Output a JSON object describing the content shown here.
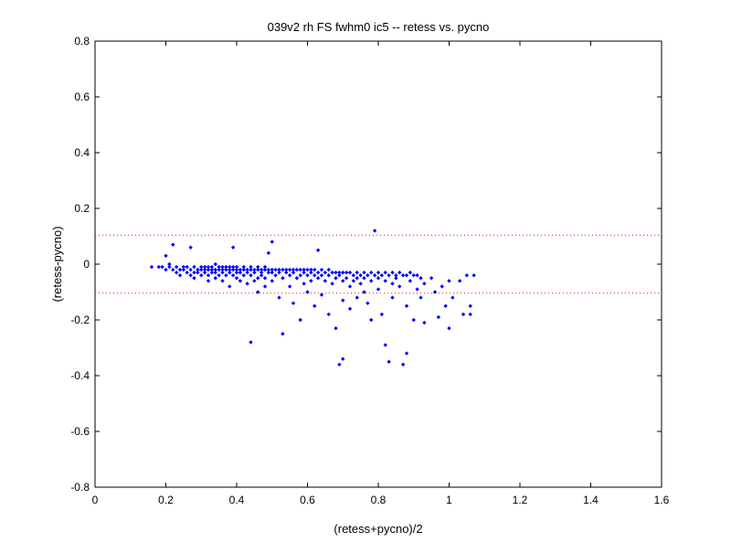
{
  "chart_data": {
    "type": "scatter",
    "title": "039v2 rh FS fwhm0 ic5 -- retess vs. pycno",
    "xlabel": "(retess+pycno)/2",
    "ylabel": "(retess-pycno)",
    "xlim": [
      0,
      1.6
    ],
    "ylim": [
      -0.8,
      0.8
    ],
    "xticks": [
      "0",
      "0.2",
      "0.4",
      "0.6",
      "0.8",
      "1",
      "1.2",
      "1.4",
      "1.6"
    ],
    "yticks": [
      "-0.8",
      "-0.6",
      "-0.4",
      "-0.2",
      "0",
      "0.2",
      "0.4",
      "0.6",
      "0.8"
    ],
    "grid": false,
    "point_color": "#0000ff",
    "reference_line_color": "#ff0000",
    "reference_lines_y": [
      0.104,
      -0.104
    ],
    "series": [
      {
        "points": [
          [
            0.16,
            -0.01
          ],
          [
            0.18,
            -0.01
          ],
          [
            0.19,
            -0.01
          ],
          [
            0.2,
            -0.02
          ],
          [
            0.2,
            0.03
          ],
          [
            0.21,
            -0.01
          ],
          [
            0.21,
            0.0
          ],
          [
            0.22,
            -0.02
          ],
          [
            0.22,
            0.07
          ],
          [
            0.23,
            -0.01
          ],
          [
            0.23,
            -0.03
          ],
          [
            0.24,
            -0.02
          ],
          [
            0.24,
            -0.04
          ],
          [
            0.25,
            -0.01
          ],
          [
            0.25,
            -0.02
          ],
          [
            0.26,
            -0.01
          ],
          [
            0.26,
            -0.03
          ],
          [
            0.27,
            -0.02
          ],
          [
            0.27,
            -0.04
          ],
          [
            0.27,
            0.06
          ],
          [
            0.28,
            -0.01
          ],
          [
            0.28,
            -0.03
          ],
          [
            0.28,
            -0.05
          ],
          [
            0.29,
            -0.02
          ],
          [
            0.29,
            -0.03
          ],
          [
            0.3,
            -0.01
          ],
          [
            0.3,
            -0.02
          ],
          [
            0.3,
            -0.04
          ],
          [
            0.31,
            -0.01
          ],
          [
            0.31,
            -0.02
          ],
          [
            0.31,
            -0.03
          ],
          [
            0.32,
            -0.01
          ],
          [
            0.32,
            -0.02
          ],
          [
            0.32,
            -0.04
          ],
          [
            0.32,
            -0.06
          ],
          [
            0.33,
            -0.01
          ],
          [
            0.33,
            -0.02
          ],
          [
            0.33,
            -0.03
          ],
          [
            0.34,
            0.0
          ],
          [
            0.34,
            -0.02
          ],
          [
            0.34,
            -0.03
          ],
          [
            0.34,
            -0.05
          ],
          [
            0.35,
            -0.01
          ],
          [
            0.35,
            -0.02
          ],
          [
            0.35,
            -0.04
          ],
          [
            0.36,
            -0.01
          ],
          [
            0.36,
            -0.02
          ],
          [
            0.36,
            -0.03
          ],
          [
            0.36,
            -0.06
          ],
          [
            0.37,
            -0.01
          ],
          [
            0.37,
            -0.02
          ],
          [
            0.37,
            -0.04
          ],
          [
            0.38,
            -0.01
          ],
          [
            0.38,
            -0.02
          ],
          [
            0.38,
            -0.03
          ],
          [
            0.38,
            -0.08
          ],
          [
            0.39,
            -0.01
          ],
          [
            0.39,
            -0.02
          ],
          [
            0.39,
            -0.04
          ],
          [
            0.39,
            0.06
          ],
          [
            0.4,
            -0.01
          ],
          [
            0.4,
            -0.02
          ],
          [
            0.4,
            -0.03
          ],
          [
            0.4,
            -0.05
          ],
          [
            0.41,
            -0.02
          ],
          [
            0.41,
            -0.03
          ],
          [
            0.41,
            -0.06
          ],
          [
            0.42,
            -0.01
          ],
          [
            0.42,
            -0.02
          ],
          [
            0.42,
            -0.04
          ],
          [
            0.43,
            -0.02
          ],
          [
            0.43,
            -0.03
          ],
          [
            0.43,
            -0.07
          ],
          [
            0.44,
            -0.01
          ],
          [
            0.44,
            -0.02
          ],
          [
            0.44,
            -0.04
          ],
          [
            0.44,
            -0.28
          ],
          [
            0.45,
            -0.02
          ],
          [
            0.45,
            -0.03
          ],
          [
            0.45,
            -0.06
          ],
          [
            0.46,
            -0.01
          ],
          [
            0.46,
            -0.02
          ],
          [
            0.46,
            -0.05
          ],
          [
            0.46,
            -0.1
          ],
          [
            0.47,
            -0.02
          ],
          [
            0.47,
            -0.03
          ],
          [
            0.47,
            -0.04
          ],
          [
            0.48,
            -0.01
          ],
          [
            0.48,
            -0.02
          ],
          [
            0.48,
            -0.05
          ],
          [
            0.48,
            -0.08
          ],
          [
            0.49,
            -0.02
          ],
          [
            0.49,
            -0.03
          ],
          [
            0.49,
            0.04
          ],
          [
            0.5,
            -0.02
          ],
          [
            0.5,
            -0.03
          ],
          [
            0.5,
            -0.06
          ],
          [
            0.5,
            0.08
          ],
          [
            0.51,
            -0.02
          ],
          [
            0.51,
            -0.04
          ],
          [
            0.52,
            -0.02
          ],
          [
            0.52,
            -0.03
          ],
          [
            0.52,
            -0.12
          ],
          [
            0.53,
            -0.02
          ],
          [
            0.53,
            -0.05
          ],
          [
            0.53,
            -0.25
          ],
          [
            0.54,
            -0.02
          ],
          [
            0.54,
            -0.03
          ],
          [
            0.55,
            -0.02
          ],
          [
            0.55,
            -0.04
          ],
          [
            0.55,
            -0.08
          ],
          [
            0.56,
            -0.02
          ],
          [
            0.56,
            -0.03
          ],
          [
            0.56,
            -0.14
          ],
          [
            0.57,
            -0.02
          ],
          [
            0.57,
            -0.05
          ],
          [
            0.58,
            -0.02
          ],
          [
            0.58,
            -0.04
          ],
          [
            0.58,
            -0.2
          ],
          [
            0.59,
            -0.02
          ],
          [
            0.59,
            -0.03
          ],
          [
            0.59,
            -0.07
          ],
          [
            0.6,
            -0.02
          ],
          [
            0.6,
            -0.04
          ],
          [
            0.6,
            -0.1
          ],
          [
            0.61,
            -0.02
          ],
          [
            0.61,
            -0.03
          ],
          [
            0.61,
            -0.06
          ],
          [
            0.62,
            -0.02
          ],
          [
            0.62,
            -0.04
          ],
          [
            0.62,
            -0.15
          ],
          [
            0.63,
            -0.03
          ],
          [
            0.63,
            -0.05
          ],
          [
            0.63,
            0.05
          ],
          [
            0.64,
            -0.02
          ],
          [
            0.64,
            -0.04
          ],
          [
            0.64,
            -0.11
          ],
          [
            0.65,
            -0.03
          ],
          [
            0.65,
            -0.06
          ],
          [
            0.66,
            -0.02
          ],
          [
            0.66,
            -0.04
          ],
          [
            0.66,
            -0.18
          ],
          [
            0.67,
            -0.03
          ],
          [
            0.67,
            -0.07
          ],
          [
            0.68,
            -0.03
          ],
          [
            0.68,
            -0.05
          ],
          [
            0.68,
            -0.23
          ],
          [
            0.69,
            -0.03
          ],
          [
            0.69,
            -0.04
          ],
          [
            0.69,
            -0.36
          ],
          [
            0.7,
            -0.03
          ],
          [
            0.7,
            -0.06
          ],
          [
            0.7,
            -0.13
          ],
          [
            0.7,
            -0.34
          ],
          [
            0.71,
            -0.03
          ],
          [
            0.71,
            -0.05
          ],
          [
            0.72,
            -0.03
          ],
          [
            0.72,
            -0.08
          ],
          [
            0.72,
            -0.16
          ],
          [
            0.73,
            -0.04
          ],
          [
            0.73,
            -0.06
          ],
          [
            0.74,
            -0.03
          ],
          [
            0.74,
            -0.05
          ],
          [
            0.74,
            -0.12
          ],
          [
            0.75,
            -0.04
          ],
          [
            0.75,
            -0.07
          ],
          [
            0.76,
            -0.03
          ],
          [
            0.76,
            -0.05
          ],
          [
            0.76,
            -0.1
          ],
          [
            0.77,
            -0.04
          ],
          [
            0.77,
            -0.14
          ],
          [
            0.78,
            -0.03
          ],
          [
            0.78,
            -0.06
          ],
          [
            0.78,
            -0.2
          ],
          [
            0.79,
            -0.04
          ],
          [
            0.79,
            0.12
          ],
          [
            0.8,
            -0.03
          ],
          [
            0.8,
            -0.05
          ],
          [
            0.8,
            -0.09
          ],
          [
            0.81,
            -0.04
          ],
          [
            0.81,
            -0.18
          ],
          [
            0.82,
            -0.03
          ],
          [
            0.82,
            -0.06
          ],
          [
            0.82,
            -0.29
          ],
          [
            0.83,
            -0.04
          ],
          [
            0.83,
            -0.35
          ],
          [
            0.84,
            -0.03
          ],
          [
            0.84,
            -0.07
          ],
          [
            0.84,
            -0.12
          ],
          [
            0.85,
            -0.04
          ],
          [
            0.85,
            -0.05
          ],
          [
            0.86,
            -0.03
          ],
          [
            0.86,
            -0.08
          ],
          [
            0.87,
            -0.04
          ],
          [
            0.87,
            -0.36
          ],
          [
            0.88,
            -0.04
          ],
          [
            0.88,
            -0.15
          ],
          [
            0.88,
            -0.32
          ],
          [
            0.89,
            -0.03
          ],
          [
            0.89,
            -0.06
          ],
          [
            0.9,
            -0.04
          ],
          [
            0.9,
            -0.2
          ],
          [
            0.91,
            -0.04
          ],
          [
            0.91,
            -0.09
          ],
          [
            0.92,
            -0.05
          ],
          [
            0.92,
            -0.12
          ],
          [
            0.93,
            -0.07
          ],
          [
            0.93,
            -0.21
          ],
          [
            0.95,
            -0.05
          ],
          [
            0.96,
            -0.1
          ],
          [
            0.97,
            -0.19
          ],
          [
            0.98,
            -0.08
          ],
          [
            0.99,
            -0.15
          ],
          [
            1.0,
            -0.23
          ],
          [
            1.0,
            -0.06
          ],
          [
            1.01,
            -0.12
          ],
          [
            1.03,
            -0.06
          ],
          [
            1.04,
            -0.18
          ],
          [
            1.05,
            -0.04
          ],
          [
            1.06,
            -0.15
          ],
          [
            1.06,
            -0.18
          ],
          [
            1.07,
            -0.04
          ]
        ]
      }
    ]
  }
}
